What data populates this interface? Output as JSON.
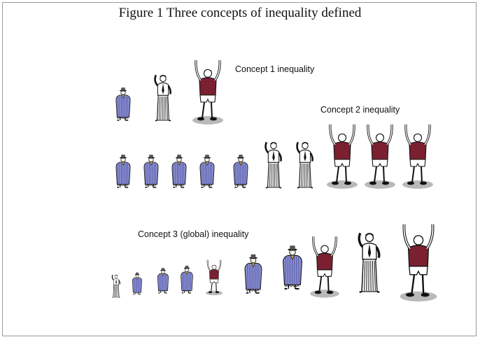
{
  "figure": {
    "title": "Figure 1 Three concepts of inequality defined"
  },
  "concepts": [
    {
      "label": "Concept 1 inequality"
    },
    {
      "label": "Concept 2 inequality"
    },
    {
      "label": "Concept 3 (global) inequality"
    }
  ],
  "colors": {
    "poor_coat": "#8b8fd1",
    "poor_stripes": "#4b4f9c",
    "middle_shirt": "#ffffff",
    "rich_shirt": "#7a2030",
    "shadow": "#b9b9b9",
    "ink": "#111111"
  },
  "rows": [
    {
      "name": "concept-1",
      "figures": [
        {
          "kind": "poor",
          "scale": 0.72
        },
        {
          "kind": "middle",
          "scale": 0.85
        },
        {
          "kind": "rich",
          "scale": 1.0
        }
      ]
    },
    {
      "name": "concept-2",
      "figures": [
        {
          "kind": "poor",
          "scale": 0.72
        },
        {
          "kind": "poor",
          "scale": 0.72
        },
        {
          "kind": "poor",
          "scale": 0.72
        },
        {
          "kind": "poor",
          "scale": 0.72
        },
        {
          "kind": "poor",
          "scale": 0.72
        },
        {
          "kind": "middle",
          "scale": 0.85
        },
        {
          "kind": "middle",
          "scale": 0.85
        },
        {
          "kind": "rich",
          "scale": 1.0
        },
        {
          "kind": "rich",
          "scale": 1.0
        },
        {
          "kind": "rich",
          "scale": 1.0
        }
      ]
    },
    {
      "name": "concept-3",
      "figures": [
        {
          "kind": "middle",
          "scale": 0.42
        },
        {
          "kind": "poor",
          "scale": 0.48
        },
        {
          "kind": "poor",
          "scale": 0.55
        },
        {
          "kind": "poor",
          "scale": 0.6
        },
        {
          "kind": "rich",
          "scale": 0.55
        },
        {
          "kind": "poor",
          "scale": 0.85
        },
        {
          "kind": "poor",
          "scale": 0.95
        },
        {
          "kind": "rich",
          "scale": 0.95
        },
        {
          "kind": "middle",
          "scale": 1.1
        },
        {
          "kind": "rich",
          "scale": 1.2
        }
      ]
    }
  ]
}
